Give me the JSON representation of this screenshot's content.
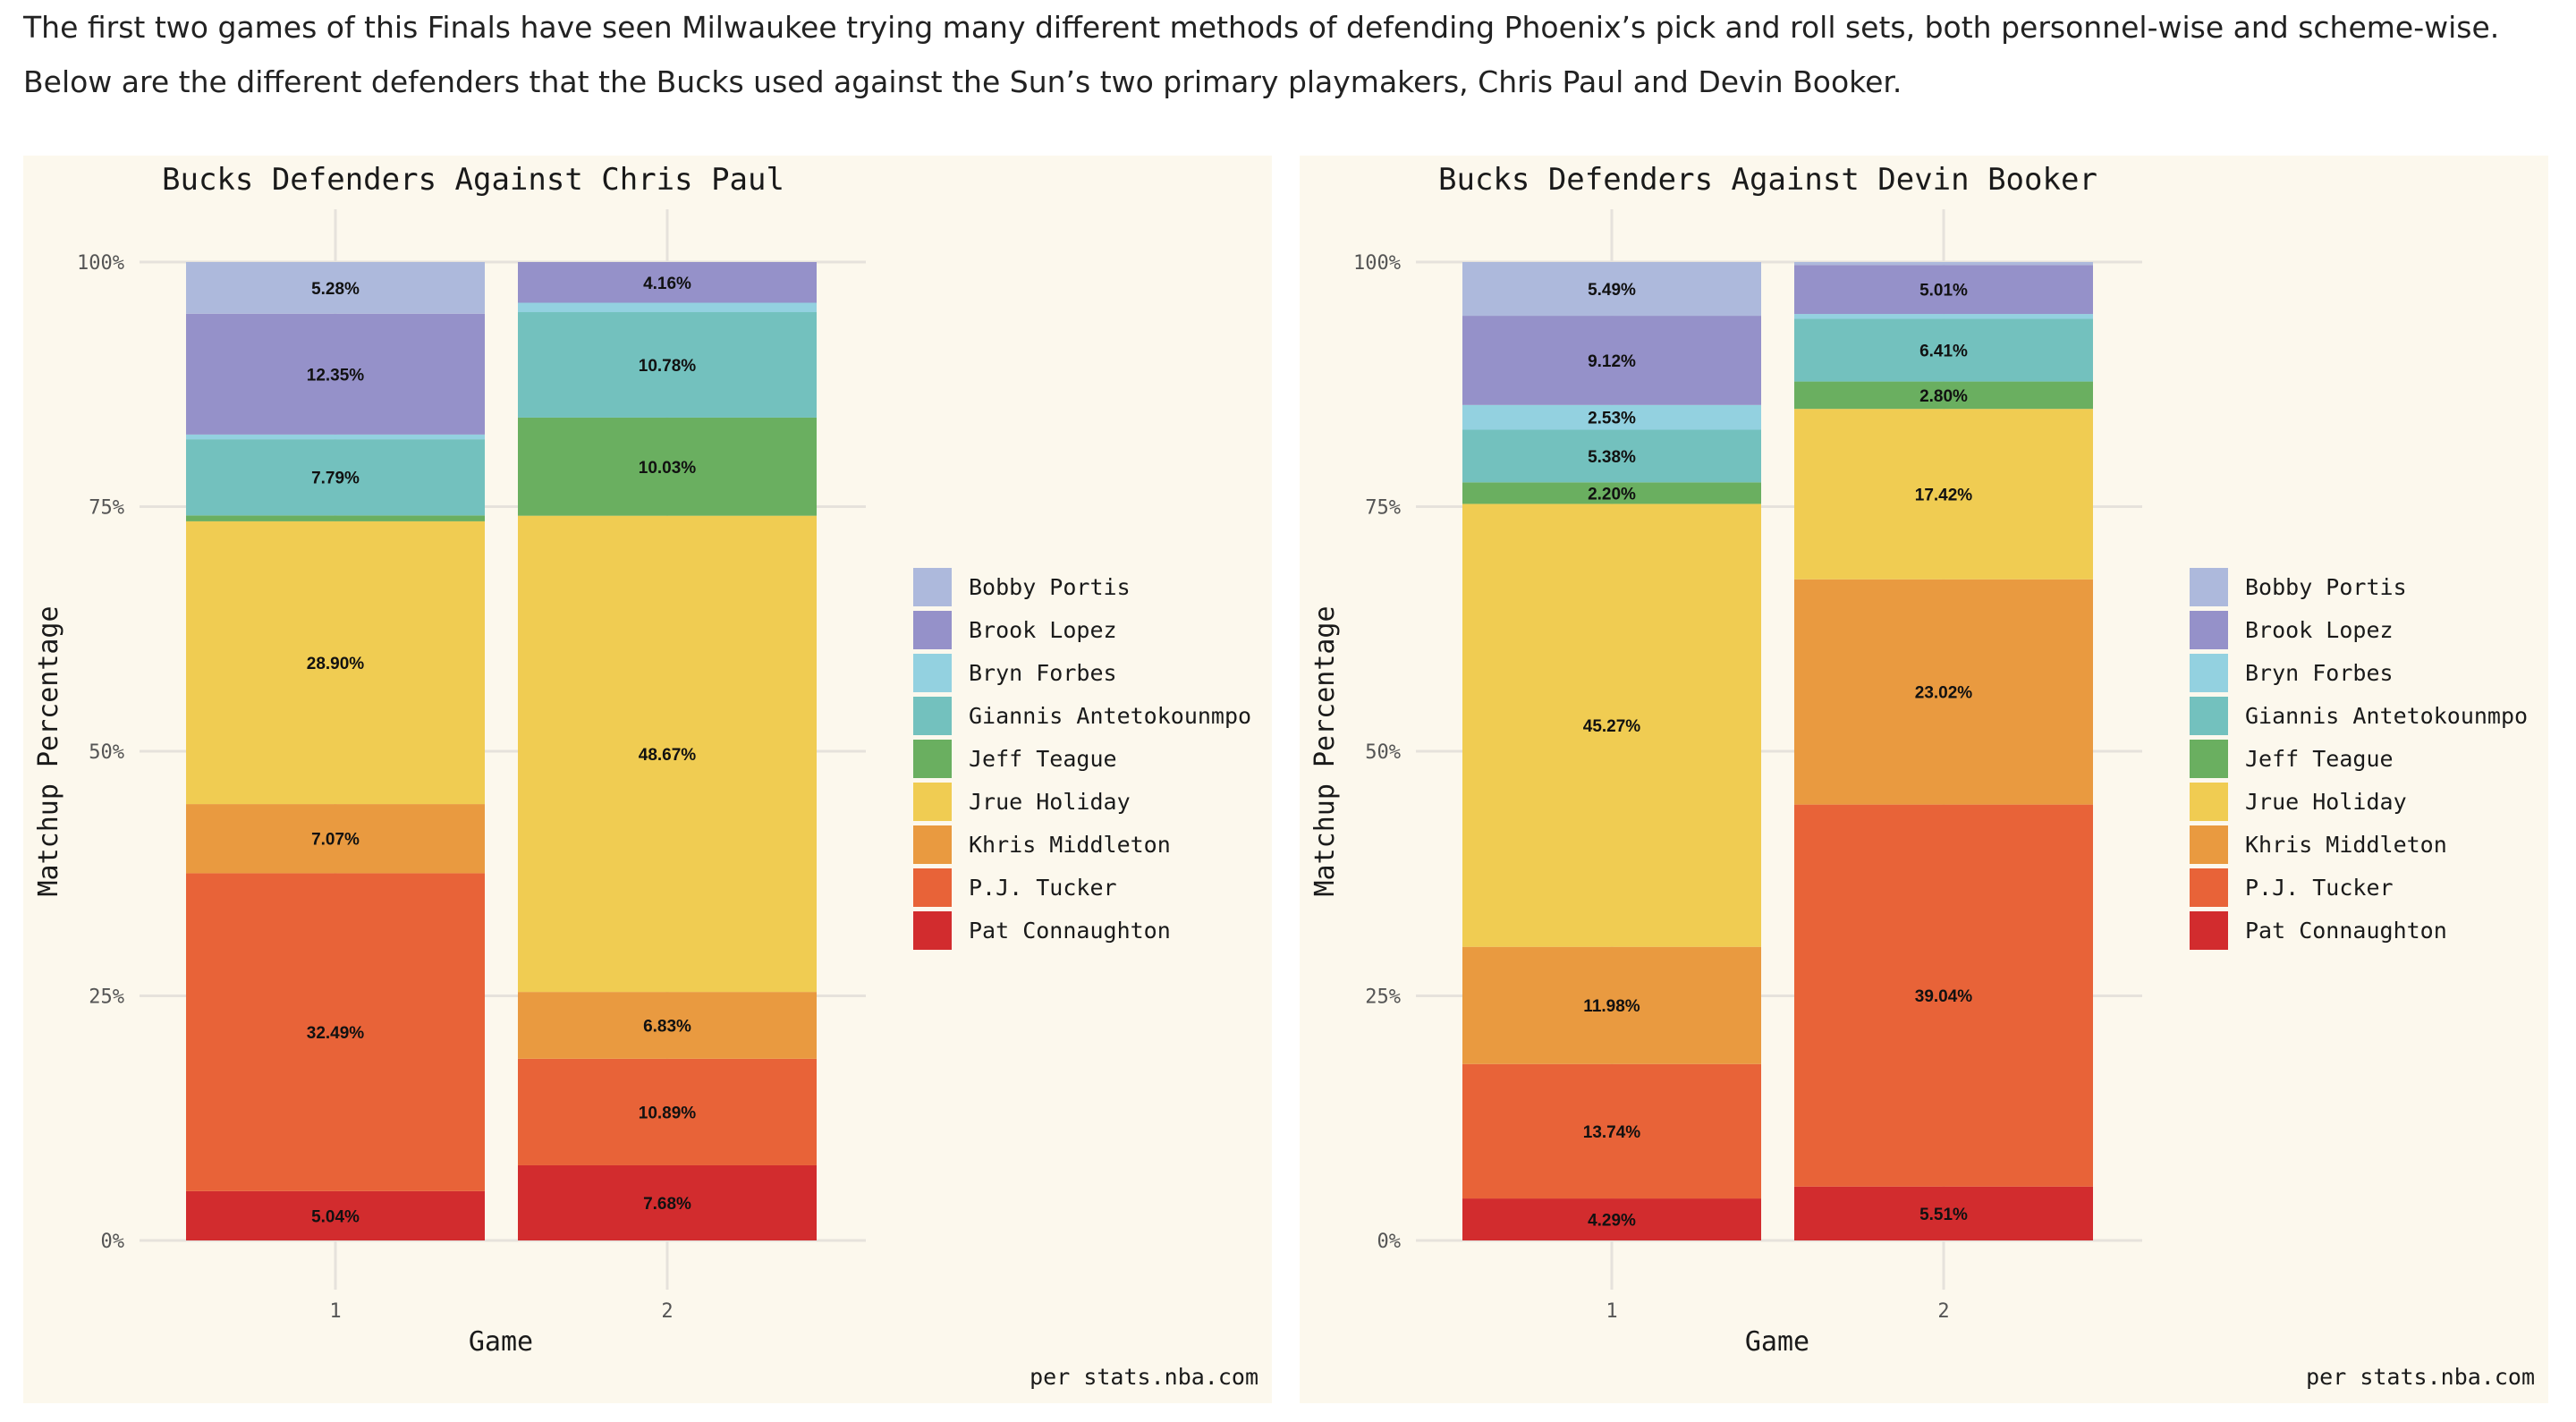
{
  "intro": {
    "line1": "The first two games of this Finals have seen Milwaukee trying many different methods of defending Phoenix’s pick and roll sets, both personnel-wise and scheme-wise.",
    "line2": "Below are the different defenders that the Bucks used against the Sun’s two primary playmakers, Chris Paul and Devin Booker."
  },
  "colors": {
    "Bobby Portis": "#adb9dc",
    "Brook Lopez": "#9591c9",
    "Bryn Forbes": "#93d1e0",
    "Giannis Antetokounmpo": "#73c1be",
    "Jeff Teague": "#6aaf60",
    "Jrue Holiday": "#f0cc52",
    "Khris Middleton": "#e99a40",
    "P.J. Tucker": "#e86338",
    "Pat Connaughton": "#d22c2e"
  },
  "chart_data": [
    {
      "type": "bar",
      "stacked": true,
      "title": "Bucks Defenders Against Chris Paul",
      "xlabel": "Game",
      "ylabel": "Matchup Percentage",
      "caption": "per stats.nba.com",
      "ylim": [
        0,
        100
      ],
      "yticks": [
        "0%",
        "25%",
        "50%",
        "75%",
        "100%"
      ],
      "categories": [
        "1",
        "2"
      ],
      "legend": {
        "position": "right"
      },
      "series": [
        {
          "name": "Pat Connaughton",
          "values": [
            5.04,
            7.68
          ],
          "labels": [
            "5.04%",
            "7.68%"
          ]
        },
        {
          "name": "P.J. Tucker",
          "values": [
            32.49,
            10.89
          ],
          "labels": [
            "32.49%",
            "10.89%"
          ]
        },
        {
          "name": "Khris Middleton",
          "values": [
            7.07,
            6.83
          ],
          "labels": [
            "7.07%",
            "6.83%"
          ]
        },
        {
          "name": "Jrue Holiday",
          "values": [
            28.9,
            48.67
          ],
          "labels": [
            "28.90%",
            "48.67%"
          ]
        },
        {
          "name": "Jeff Teague",
          "values": [
            0.6,
            10.03
          ],
          "labels": [
            "",
            "10.03%"
          ]
        },
        {
          "name": "Giannis Antetokounmpo",
          "values": [
            7.79,
            10.78
          ],
          "labels": [
            "7.79%",
            "10.78%"
          ]
        },
        {
          "name": "Bryn Forbes",
          "values": [
            0.48,
            0.96
          ],
          "labels": [
            "",
            ""
          ]
        },
        {
          "name": "Brook Lopez",
          "values": [
            12.35,
            4.16
          ],
          "labels": [
            "12.35%",
            "4.16%"
          ]
        },
        {
          "name": "Bobby Portis",
          "values": [
            5.28,
            0
          ],
          "labels": [
            "5.28%",
            ""
          ]
        }
      ]
    },
    {
      "type": "bar",
      "stacked": true,
      "title": "Bucks Defenders Against Devin Booker",
      "xlabel": "Game",
      "ylabel": "Matchup Percentage",
      "caption": "per stats.nba.com",
      "ylim": [
        0,
        100
      ],
      "yticks": [
        "0%",
        "25%",
        "50%",
        "75%",
        "100%"
      ],
      "categories": [
        "1",
        "2"
      ],
      "legend": {
        "position": "right"
      },
      "series": [
        {
          "name": "Pat Connaughton",
          "values": [
            4.29,
            5.51
          ],
          "labels": [
            "4.29%",
            "5.51%"
          ]
        },
        {
          "name": "P.J. Tucker",
          "values": [
            13.74,
            39.04
          ],
          "labels": [
            "13.74%",
            "39.04%"
          ]
        },
        {
          "name": "Khris Middleton",
          "values": [
            11.98,
            23.02
          ],
          "labels": [
            "11.98%",
            "23.02%"
          ]
        },
        {
          "name": "Jrue Holiday",
          "values": [
            45.27,
            17.42
          ],
          "labels": [
            "45.27%",
            "17.42%"
          ]
        },
        {
          "name": "Jeff Teague",
          "values": [
            2.2,
            2.8
          ],
          "labels": [
            "2.20%",
            "2.80%"
          ]
        },
        {
          "name": "Giannis Antetokounmpo",
          "values": [
            5.38,
            6.41
          ],
          "labels": [
            "5.38%",
            "6.41%"
          ]
        },
        {
          "name": "Bryn Forbes",
          "values": [
            2.53,
            0.49
          ],
          "labels": [
            "2.53%",
            ""
          ]
        },
        {
          "name": "Brook Lopez",
          "values": [
            9.12,
            5.01
          ],
          "labels": [
            "9.12%",
            "5.01%"
          ]
        },
        {
          "name": "Bobby Portis",
          "values": [
            5.49,
            0.3
          ],
          "labels": [
            "5.49%",
            ""
          ]
        }
      ]
    }
  ]
}
